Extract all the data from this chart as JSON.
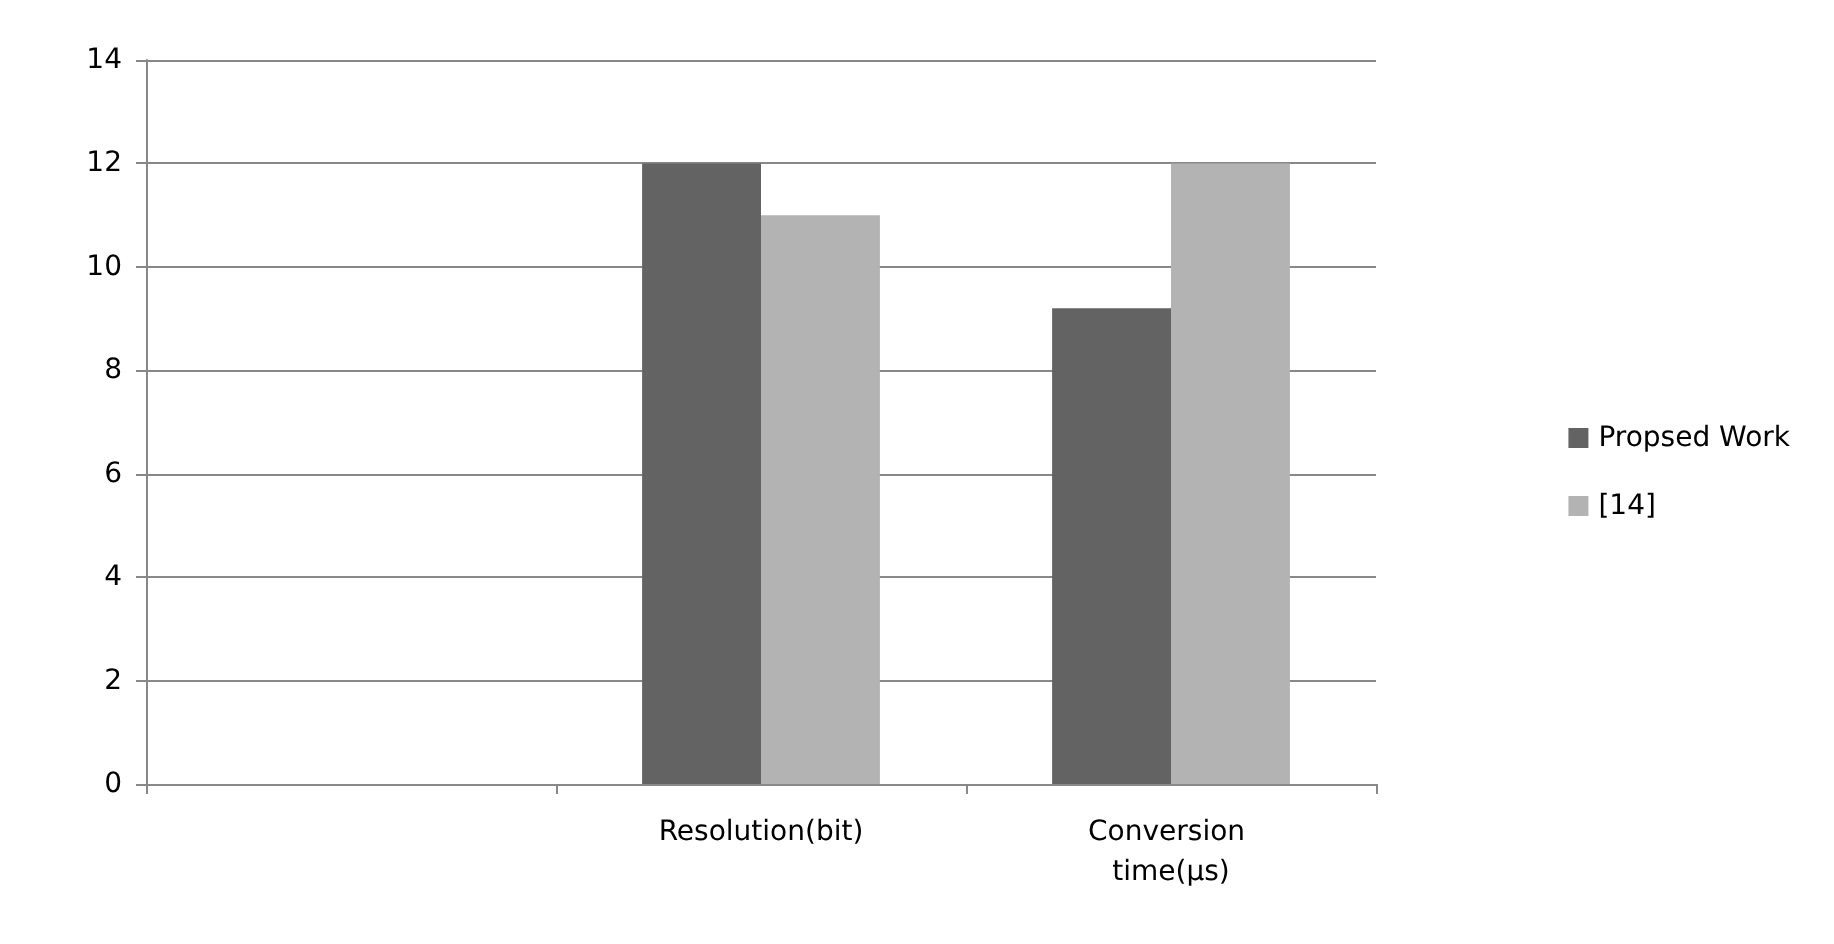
{
  "chart_data": {
    "type": "bar",
    "categories": [
      null,
      "Resolution(bit)",
      "Conversion time(µs)"
    ],
    "series": [
      {
        "name": "Propsed Work",
        "color": "#636363",
        "values": [
          null,
          12,
          9.2
        ]
      },
      {
        "name": "[14]",
        "color": "#b3b3b3",
        "values": [
          null,
          11,
          12
        ]
      }
    ],
    "ylim": [
      0,
      14
    ],
    "yticks": [
      0,
      2,
      4,
      6,
      8,
      10,
      12,
      14
    ],
    "grid": "y",
    "legend": "right"
  }
}
